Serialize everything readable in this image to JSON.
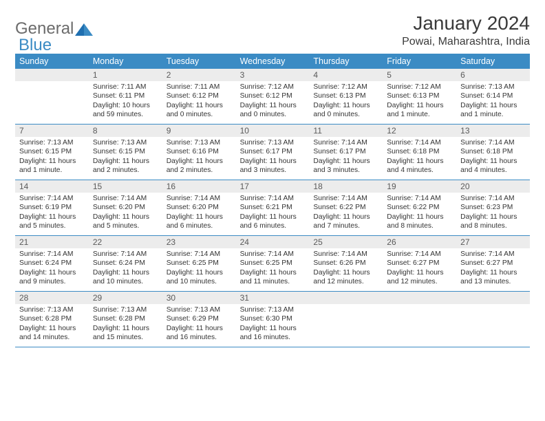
{
  "brand": {
    "word1": "General",
    "word2": "Blue"
  },
  "title": "January 2024",
  "location": "Powai, Maharashtra, India",
  "colors": {
    "accent": "#3b8bc4",
    "header_bg": "#3b8bc4",
    "daynum_bg": "#ececec",
    "text": "#333333"
  },
  "day_names": [
    "Sunday",
    "Monday",
    "Tuesday",
    "Wednesday",
    "Thursday",
    "Friday",
    "Saturday"
  ],
  "weeks": [
    [
      {
        "day": "",
        "lines": []
      },
      {
        "day": "1",
        "lines": [
          "Sunrise: 7:11 AM",
          "Sunset: 6:11 PM",
          "Daylight: 10 hours and 59 minutes."
        ]
      },
      {
        "day": "2",
        "lines": [
          "Sunrise: 7:11 AM",
          "Sunset: 6:12 PM",
          "Daylight: 11 hours and 0 minutes."
        ]
      },
      {
        "day": "3",
        "lines": [
          "Sunrise: 7:12 AM",
          "Sunset: 6:12 PM",
          "Daylight: 11 hours and 0 minutes."
        ]
      },
      {
        "day": "4",
        "lines": [
          "Sunrise: 7:12 AM",
          "Sunset: 6:13 PM",
          "Daylight: 11 hours and 0 minutes."
        ]
      },
      {
        "day": "5",
        "lines": [
          "Sunrise: 7:12 AM",
          "Sunset: 6:13 PM",
          "Daylight: 11 hours and 1 minute."
        ]
      },
      {
        "day": "6",
        "lines": [
          "Sunrise: 7:13 AM",
          "Sunset: 6:14 PM",
          "Daylight: 11 hours and 1 minute."
        ]
      }
    ],
    [
      {
        "day": "7",
        "lines": [
          "Sunrise: 7:13 AM",
          "Sunset: 6:15 PM",
          "Daylight: 11 hours and 1 minute."
        ]
      },
      {
        "day": "8",
        "lines": [
          "Sunrise: 7:13 AM",
          "Sunset: 6:15 PM",
          "Daylight: 11 hours and 2 minutes."
        ]
      },
      {
        "day": "9",
        "lines": [
          "Sunrise: 7:13 AM",
          "Sunset: 6:16 PM",
          "Daylight: 11 hours and 2 minutes."
        ]
      },
      {
        "day": "10",
        "lines": [
          "Sunrise: 7:13 AM",
          "Sunset: 6:17 PM",
          "Daylight: 11 hours and 3 minutes."
        ]
      },
      {
        "day": "11",
        "lines": [
          "Sunrise: 7:14 AM",
          "Sunset: 6:17 PM",
          "Daylight: 11 hours and 3 minutes."
        ]
      },
      {
        "day": "12",
        "lines": [
          "Sunrise: 7:14 AM",
          "Sunset: 6:18 PM",
          "Daylight: 11 hours and 4 minutes."
        ]
      },
      {
        "day": "13",
        "lines": [
          "Sunrise: 7:14 AM",
          "Sunset: 6:18 PM",
          "Daylight: 11 hours and 4 minutes."
        ]
      }
    ],
    [
      {
        "day": "14",
        "lines": [
          "Sunrise: 7:14 AM",
          "Sunset: 6:19 PM",
          "Daylight: 11 hours and 5 minutes."
        ]
      },
      {
        "day": "15",
        "lines": [
          "Sunrise: 7:14 AM",
          "Sunset: 6:20 PM",
          "Daylight: 11 hours and 5 minutes."
        ]
      },
      {
        "day": "16",
        "lines": [
          "Sunrise: 7:14 AM",
          "Sunset: 6:20 PM",
          "Daylight: 11 hours and 6 minutes."
        ]
      },
      {
        "day": "17",
        "lines": [
          "Sunrise: 7:14 AM",
          "Sunset: 6:21 PM",
          "Daylight: 11 hours and 6 minutes."
        ]
      },
      {
        "day": "18",
        "lines": [
          "Sunrise: 7:14 AM",
          "Sunset: 6:22 PM",
          "Daylight: 11 hours and 7 minutes."
        ]
      },
      {
        "day": "19",
        "lines": [
          "Sunrise: 7:14 AM",
          "Sunset: 6:22 PM",
          "Daylight: 11 hours and 8 minutes."
        ]
      },
      {
        "day": "20",
        "lines": [
          "Sunrise: 7:14 AM",
          "Sunset: 6:23 PM",
          "Daylight: 11 hours and 8 minutes."
        ]
      }
    ],
    [
      {
        "day": "21",
        "lines": [
          "Sunrise: 7:14 AM",
          "Sunset: 6:24 PM",
          "Daylight: 11 hours and 9 minutes."
        ]
      },
      {
        "day": "22",
        "lines": [
          "Sunrise: 7:14 AM",
          "Sunset: 6:24 PM",
          "Daylight: 11 hours and 10 minutes."
        ]
      },
      {
        "day": "23",
        "lines": [
          "Sunrise: 7:14 AM",
          "Sunset: 6:25 PM",
          "Daylight: 11 hours and 10 minutes."
        ]
      },
      {
        "day": "24",
        "lines": [
          "Sunrise: 7:14 AM",
          "Sunset: 6:25 PM",
          "Daylight: 11 hours and 11 minutes."
        ]
      },
      {
        "day": "25",
        "lines": [
          "Sunrise: 7:14 AM",
          "Sunset: 6:26 PM",
          "Daylight: 11 hours and 12 minutes."
        ]
      },
      {
        "day": "26",
        "lines": [
          "Sunrise: 7:14 AM",
          "Sunset: 6:27 PM",
          "Daylight: 11 hours and 12 minutes."
        ]
      },
      {
        "day": "27",
        "lines": [
          "Sunrise: 7:14 AM",
          "Sunset: 6:27 PM",
          "Daylight: 11 hours and 13 minutes."
        ]
      }
    ],
    [
      {
        "day": "28",
        "lines": [
          "Sunrise: 7:13 AM",
          "Sunset: 6:28 PM",
          "Daylight: 11 hours and 14 minutes."
        ]
      },
      {
        "day": "29",
        "lines": [
          "Sunrise: 7:13 AM",
          "Sunset: 6:28 PM",
          "Daylight: 11 hours and 15 minutes."
        ]
      },
      {
        "day": "30",
        "lines": [
          "Sunrise: 7:13 AM",
          "Sunset: 6:29 PM",
          "Daylight: 11 hours and 16 minutes."
        ]
      },
      {
        "day": "31",
        "lines": [
          "Sunrise: 7:13 AM",
          "Sunset: 6:30 PM",
          "Daylight: 11 hours and 16 minutes."
        ]
      },
      {
        "day": "",
        "lines": []
      },
      {
        "day": "",
        "lines": []
      },
      {
        "day": "",
        "lines": []
      }
    ]
  ]
}
